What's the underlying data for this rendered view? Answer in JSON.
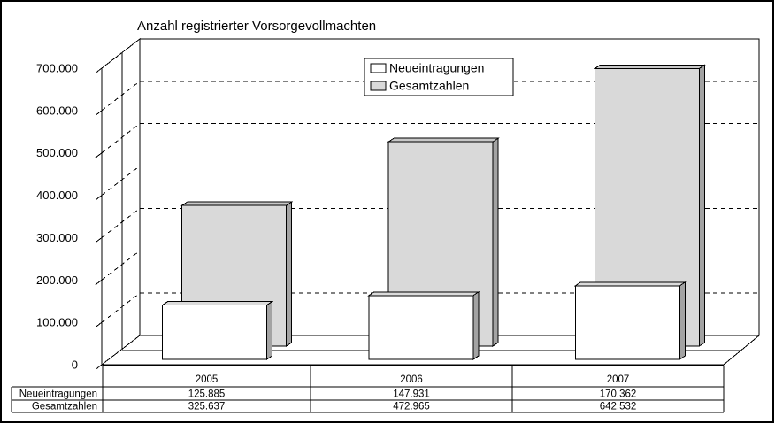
{
  "title": "Anzahl registrierter Vorsorgevollmachten",
  "legend": {
    "items": [
      {
        "label": "Neueintragungen",
        "fill": "#FFFFFF"
      },
      {
        "label": "Gesamtzahlen",
        "fill": "#D9D9D9"
      }
    ]
  },
  "chart_data": {
    "type": "bar",
    "style": "3d-bar",
    "title": "Anzahl registrierter Vorsorgevollmachten",
    "categories": [
      "2005",
      "2006",
      "2007"
    ],
    "series": [
      {
        "name": "Neueintragungen",
        "values": [
          125885,
          147931,
          170362
        ],
        "fill": "#FFFFFF"
      },
      {
        "name": "Gesamtzahlen",
        "values": [
          325637,
          472965,
          642532
        ],
        "fill": "#D9D9D9"
      }
    ],
    "xlabel": "",
    "ylabel": "",
    "ylim": [
      0,
      700000
    ],
    "y_tick_step": 100000,
    "y_tick_labels": [
      "0",
      "100.000",
      "200.000",
      "300.000",
      "400.000",
      "500.000",
      "600.000",
      "700.000"
    ],
    "grid": "dashed-horizontal",
    "legend_position": "top-center"
  },
  "table": {
    "row_labels": [
      "Neueintragungen",
      "Gesamtzahlen"
    ],
    "columns": [
      "2005",
      "2006",
      "2007"
    ],
    "rows": [
      [
        "125.885",
        "147.931",
        "170.362"
      ],
      [
        "325.637",
        "472.965",
        "642.532"
      ]
    ]
  }
}
